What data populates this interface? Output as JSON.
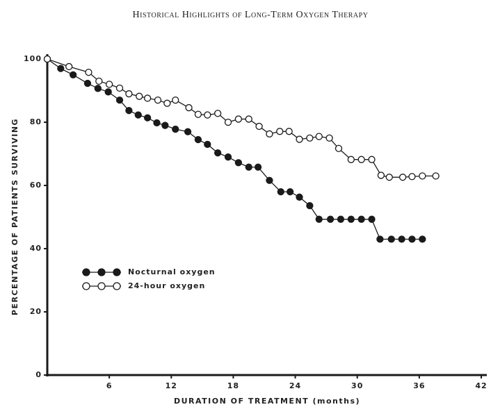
{
  "chart_data": {
    "type": "line",
    "header": "Historical Highlights of Long-Term Oxygen Therapy",
    "xlabel": "DURATION OF TREATMENT (months)",
    "ylabel": "PERCENTAGE OF PATIENTS SURVIVING",
    "xlim": [
      0,
      42
    ],
    "xticks": [
      6,
      12,
      18,
      24,
      30,
      36,
      42
    ],
    "ylim": [
      0,
      100
    ],
    "yticks": [
      0,
      20,
      40,
      60,
      80,
      100
    ],
    "legend": "center left",
    "series": [
      {
        "name": "Nocturnal oxygen",
        "color": "#1a1a1a",
        "x": [
          0,
          1.3,
          2.5,
          3.9,
          4.9,
          5.9,
          7,
          7.9,
          8.8,
          9.7,
          10.6,
          11.4,
          12.4,
          13.6,
          14.6,
          15.5,
          16.5,
          17.5,
          18.5,
          19.5,
          20.4,
          21.5,
          22.6,
          23.5,
          24.4,
          25.4,
          26.3,
          27.4,
          28.4,
          29.4,
          30.4,
          31.4,
          32.2,
          33.3,
          34.3,
          35.3,
          36.3
        ],
        "values": [
          100,
          97,
          95,
          92.3,
          90.7,
          89.6,
          87,
          83.7,
          82.3,
          81.4,
          79.8,
          79,
          77.8,
          77,
          74.5,
          73,
          70.3,
          69,
          67.2,
          65.8,
          65.8,
          61.6,
          58,
          58,
          56.3,
          53.6,
          49.3,
          49.3,
          49.3,
          49.3,
          49.3,
          49.3,
          43,
          43,
          43,
          43,
          43
        ]
      },
      {
        "name": "24-hour oxygen",
        "color": "#ffffff",
        "x": [
          0,
          2.1,
          4,
          5,
          6,
          7,
          7.9,
          8.9,
          9.7,
          10.7,
          11.6,
          12.4,
          13.7,
          14.6,
          15.5,
          16.5,
          17.5,
          18.5,
          19.5,
          20.5,
          21.5,
          22.5,
          23.4,
          24.4,
          25.4,
          26.3,
          27.3,
          28.2,
          29.4,
          30.4,
          31.4,
          32.3,
          33.1,
          34.4,
          35.3,
          36.3,
          37.6
        ],
        "values": [
          100,
          97.6,
          95.8,
          93,
          92,
          90.8,
          89,
          88.2,
          87.6,
          87,
          86,
          87,
          84.6,
          82.5,
          82.3,
          82.8,
          80,
          81,
          81,
          78.7,
          76.3,
          77.1,
          77.1,
          74.6,
          75,
          75.5,
          75,
          71.7,
          68.2,
          68.2,
          68.2,
          63.2,
          62.6,
          62.6,
          62.8,
          63,
          63
        ]
      }
    ]
  }
}
